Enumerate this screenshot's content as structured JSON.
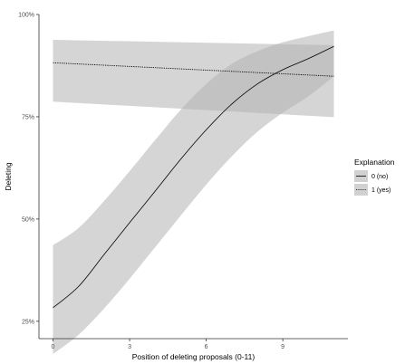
{
  "chart_data": {
    "type": "line",
    "title": "",
    "xlabel": "Position of deleting proposals (0-11)",
    "ylabel": "Deleting",
    "xlim": [
      -0.55,
      11.55
    ],
    "ylim": [
      0.2075,
      1.0
    ],
    "x_ticks": [
      0,
      3,
      6,
      9
    ],
    "x_tick_labels": [
      "0",
      "3",
      "6",
      "9"
    ],
    "y_ticks": [
      0.25,
      0.5,
      0.75,
      1.0
    ],
    "y_tick_labels": [
      "25%",
      "50%",
      "75%",
      "100%"
    ],
    "grid": false,
    "legend": {
      "title": "Explanation",
      "placement": "right",
      "entries": [
        {
          "label": "0 (no)",
          "linestyle": "solid"
        },
        {
          "label": "1 (yes)",
          "linestyle": "dotted"
        }
      ]
    },
    "ribbon_color": "#b3b3b3",
    "series": [
      {
        "name": "0 (no)",
        "linestyle": "solid",
        "x": [
          0,
          1,
          2,
          3,
          4,
          5,
          6,
          7,
          8,
          9,
          10,
          11
        ],
        "y": [
          0.283,
          0.335,
          0.413,
          0.491,
          0.568,
          0.646,
          0.718,
          0.781,
          0.83,
          0.865,
          0.892,
          0.922
        ],
        "lower": [
          0.17,
          0.217,
          0.281,
          0.354,
          0.431,
          0.508,
          0.584,
          0.653,
          0.713,
          0.76,
          0.8,
          0.849
        ],
        "upper": [
          0.436,
          0.478,
          0.544,
          0.617,
          0.693,
          0.767,
          0.83,
          0.879,
          0.91,
          0.932,
          0.947,
          0.961
        ]
      },
      {
        "name": "1 (yes)",
        "linestyle": "dotted",
        "x": [
          0,
          11
        ],
        "y": [
          0.882,
          0.849
        ],
        "lower": [
          0.787,
          0.749
        ],
        "upper": [
          0.938,
          0.925
        ]
      }
    ]
  }
}
